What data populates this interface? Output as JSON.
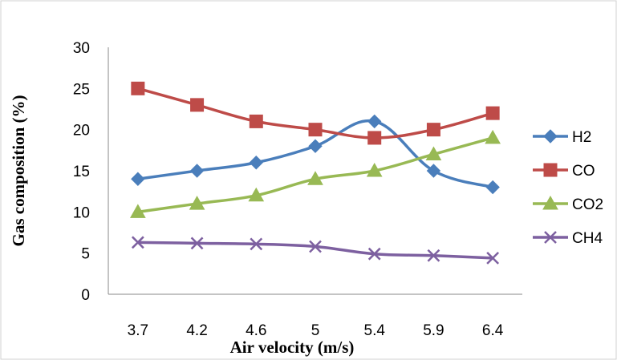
{
  "chart_data": {
    "type": "line",
    "title": "",
    "xlabel": "Air velocity (m/s)",
    "ylabel": "Gas composition (%)",
    "categories": [
      "3.7",
      "4.2",
      "4.6",
      "5",
      "5.4",
      "5.9",
      "6.4"
    ],
    "ylim": [
      0,
      30
    ],
    "yticks": [
      "0",
      "5",
      "10",
      "15",
      "20",
      "25",
      "30"
    ],
    "grid": false,
    "smooth": true,
    "legend_position": "right",
    "series": [
      {
        "name": "H2",
        "color": "#4A7EBB",
        "marker": "diamond",
        "values": [
          14,
          15,
          16,
          18,
          21,
          15,
          13
        ]
      },
      {
        "name": "CO",
        "color": "#BE4B48",
        "marker": "square",
        "values": [
          25,
          23,
          21,
          20,
          19,
          20,
          22
        ]
      },
      {
        "name": "CO2",
        "color": "#98B954",
        "marker": "triangle",
        "values": [
          10,
          11,
          12,
          14,
          15,
          17,
          19
        ]
      },
      {
        "name": "CH4",
        "color": "#7D60A0",
        "marker": "x",
        "values": [
          6.3,
          6.2,
          6.1,
          5.8,
          4.9,
          4.7,
          4.4
        ]
      }
    ]
  }
}
